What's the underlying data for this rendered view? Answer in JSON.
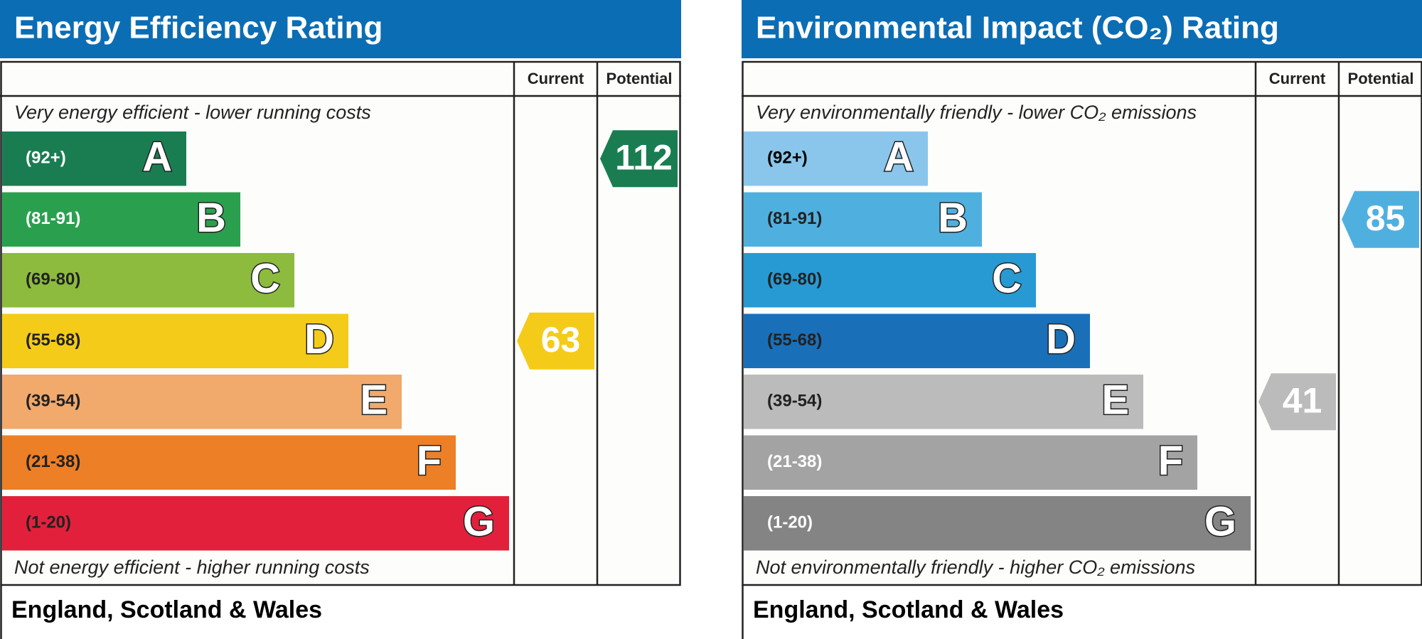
{
  "panels": [
    {
      "title": "Energy Efficiency Rating",
      "headers": [
        "Current",
        "Potential"
      ],
      "top_note": "Very energy efficient - lower running costs",
      "bottom_note": "Not energy efficient - higher running costs",
      "footer": "England, Scotland & Wales",
      "bands": [
        {
          "range": "(92+)",
          "letter": "A",
          "color": "#1a7d52",
          "text_color": "#ffffff"
        },
        {
          "range": "(81-91)",
          "letter": "B",
          "color": "#2aa04e",
          "text_color": "#ffffff"
        },
        {
          "range": "(69-80)",
          "letter": "C",
          "color": "#8cbb3e",
          "text_color": "#222222"
        },
        {
          "range": "(55-68)",
          "letter": "D",
          "color": "#f5cb1a",
          "text_color": "#222222"
        },
        {
          "range": "(39-54)",
          "letter": "E",
          "color": "#f1a96c",
          "text_color": "#222222"
        },
        {
          "range": "(21-38)",
          "letter": "F",
          "color": "#ed7f27",
          "text_color": "#222222"
        },
        {
          "range": "(1-20)",
          "letter": "G",
          "color": "#e2203c",
          "text_color": "#222222"
        }
      ],
      "current": 63,
      "potential": 112
    },
    {
      "title": "Environmental Impact (CO₂) Rating",
      "headers": [
        "Current",
        "Potential"
      ],
      "top_note": "Very environmentally friendly - lower CO₂ emissions",
      "bottom_note": "Not environmentally friendly - higher CO₂ emissions",
      "footer": "England, Scotland & Wales",
      "bands": [
        {
          "range": "(92+)",
          "letter": "A",
          "color": "#8ac6eb",
          "text_color": "#000000"
        },
        {
          "range": "(81-91)",
          "letter": "B",
          "color": "#4fb0e0",
          "text_color": "#222222"
        },
        {
          "range": "(69-80)",
          "letter": "C",
          "color": "#279ad3",
          "text_color": "#222222"
        },
        {
          "range": "(55-68)",
          "letter": "D",
          "color": "#1a70b8",
          "text_color": "#222222"
        },
        {
          "range": "(39-54)",
          "letter": "E",
          "color": "#bbbbbb",
          "text_color": "#222222"
        },
        {
          "range": "(21-38)",
          "letter": "F",
          "color": "#a3a3a3",
          "text_color": "#ffffff"
        },
        {
          "range": "(1-20)",
          "letter": "G",
          "color": "#848484",
          "text_color": "#ffffff"
        }
      ],
      "current": 41,
      "potential": 85
    }
  ]
}
